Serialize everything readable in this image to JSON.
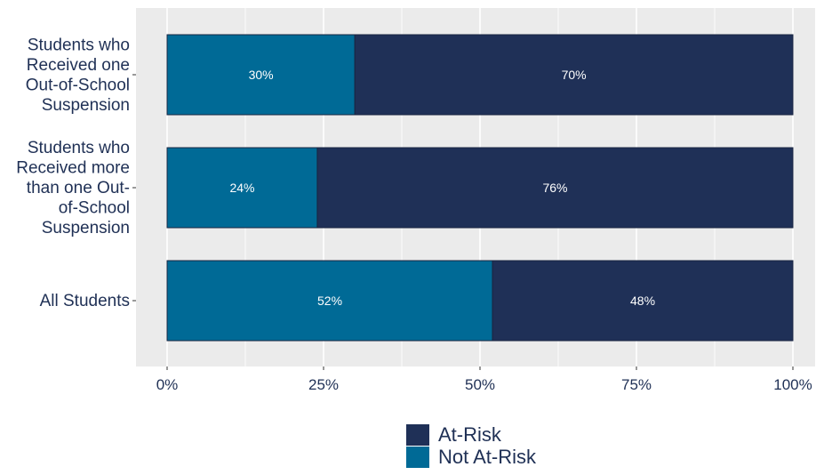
{
  "chart_data": {
    "type": "bar",
    "orientation": "horizontal",
    "stacked": true,
    "categories": [
      "Students who Received one Out-of-School Suspension",
      "Students who Received more than one Out-of-School Suspension",
      "All Students"
    ],
    "category_label_lines": [
      [
        "Students who",
        "Received one",
        "Out-of-School",
        "Suspension"
      ],
      [
        "Students who",
        "Received more",
        "than one Out-",
        "of-School",
        "Suspension"
      ],
      [
        "All Students"
      ]
    ],
    "series": [
      {
        "name": "Not At-Risk",
        "color": "#006a96",
        "values": [
          30,
          24,
          52
        ],
        "labels": [
          "30%",
          "24%",
          "52%"
        ]
      },
      {
        "name": "At-Risk",
        "color": "#1f3057",
        "values": [
          70,
          76,
          48
        ],
        "labels": [
          "70%",
          "76%",
          "48%"
        ]
      }
    ],
    "x_ticks": [
      0,
      25,
      50,
      75,
      100
    ],
    "x_tick_labels": [
      "0%",
      "25%",
      "50%",
      "75%",
      "100%"
    ],
    "xlim": [
      0,
      100
    ],
    "grid": true,
    "legend_position": "bottom",
    "legend": [
      {
        "name": "At-Risk",
        "color": "#1f3057"
      },
      {
        "name": "Not At-Risk",
        "color": "#006a96"
      }
    ],
    "panel_background": "#ebebeb",
    "gridline_color": "#ffffff"
  }
}
